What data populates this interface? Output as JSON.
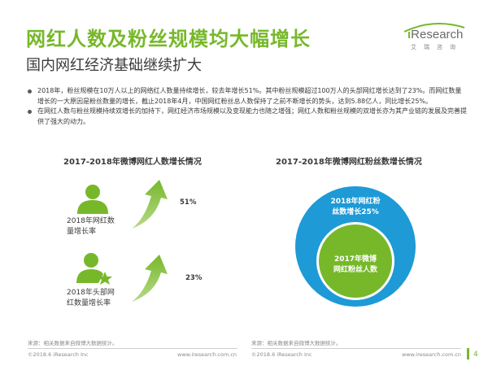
{
  "header": {
    "title": "网红人数及粉丝规模均大幅增长",
    "subtitle": "国内网红经济基础继续扩大"
  },
  "logo": {
    "brand_i": "i",
    "brand_rest": "Research",
    "sub": "艾瑞咨询"
  },
  "bullets": [
    "2018年，粉丝规模在10万人以上的网络红人数量持续增长，较去年增长51%。其中粉丝规模超过100万人的头部网红增长达到了23%。而网红数量增长的一大原因是粉丝数量的增长，截止2018年4月，中国网红粉丝总人数保持了之前不断增长的势头，达到5.88亿人，同比增长25%。",
    "在网红人数与粉丝规模持续双增长的加持下，网红经济市场规模以及变现能力也随之增强；网红人数和粉丝规模的双增长亦为其产业链的发展及完善提供了强大的动力。"
  ],
  "left_chart": {
    "title": "2017-2018年微博网红人数增长情况",
    "items": [
      {
        "label_line1": "2018年网红数",
        "label_line2": "量增长率",
        "value": "51%"
      },
      {
        "label_line1": "2018年头部网",
        "label_line2": "红数量增长率",
        "value": "23%"
      }
    ],
    "icon_color": "#77b82a"
  },
  "right_chart": {
    "title": "2017-2018年微博网红粉丝数增长情况",
    "outer_line1": "2018年网红粉",
    "outer_line2": "丝数增长25%",
    "inner_line1": "2017年微博",
    "inner_line2": "网红粉丝人数",
    "outer_color": "#1e9ad6",
    "inner_color": "#77b82a"
  },
  "footer": {
    "source_left": "来源：相关数据来自微博大数据统计。",
    "source_right": "来源：相关数据来自微博大数据统计。",
    "copyright_left": "©2018.6 iResearch Inc",
    "url_left": "www.iresearch.com.cn",
    "copyright_right": "©2018.6 iResearch Inc",
    "url_right": "www.iresearch.com.cn",
    "page": "4"
  },
  "colors": {
    "accent": "#77b82a",
    "blue": "#1e9ad6"
  }
}
